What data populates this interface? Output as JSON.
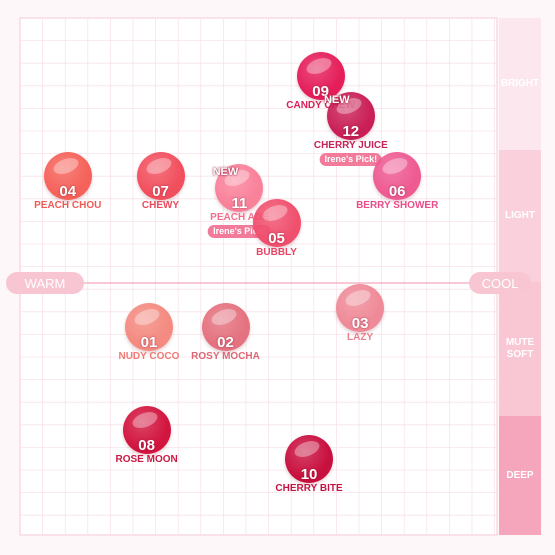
{
  "chart_data": {
    "type": "scatter",
    "x_axis": {
      "left_label": "WARM",
      "right_label": "COOL"
    },
    "y_bands": [
      {
        "id": "bright",
        "label": "BRIGHT",
        "color": "#fde7ee"
      },
      {
        "id": "light",
        "label": "LIGHT",
        "color": "#fbd0dd"
      },
      {
        "id": "mute",
        "label": "MUTE\nSOFT",
        "color": "#f9c6d4"
      },
      {
        "id": "deep",
        "label": "DEEP",
        "color": "#f5a6bd"
      }
    ],
    "points": [
      {
        "num": "04",
        "name": "PEACH CHOU",
        "x": -0.82,
        "y": 0.43,
        "color": "#f5625a",
        "label_color": "#ef5a55",
        "new": false,
        "pick": ""
      },
      {
        "num": "07",
        "name": "CHEWY",
        "x": -0.42,
        "y": 0.43,
        "color": "#f24f5e",
        "label_color": "#ea4a5c",
        "new": false,
        "pick": ""
      },
      {
        "num": "11",
        "name": "PEACH ADE",
        "x": -0.08,
        "y": 0.38,
        "color": "#f9819a",
        "label_color": "#f0708c",
        "new": true,
        "pick": "Irene's Pick!"
      },
      {
        "num": "05",
        "name": "BUBBLY",
        "x": 0.08,
        "y": 0.24,
        "color": "#f0506e",
        "label_color": "#e94566",
        "new": false,
        "pick": ""
      },
      {
        "num": "09",
        "name": "CANDY CHEW",
        "x": 0.27,
        "y": 0.83,
        "color": "#e51e5a",
        "label_color": "#d91e58",
        "new": false,
        "pick": ""
      },
      {
        "num": "12",
        "name": "CHERRY JUICE",
        "x": 0.4,
        "y": 0.67,
        "color": "#c91f56",
        "label_color": "#c42356",
        "new": true,
        "pick": "Irene's Pick!"
      },
      {
        "num": "06",
        "name": "BERRY SHOWER",
        "x": 0.6,
        "y": 0.43,
        "color": "#ee5a92",
        "label_color": "#e84e8a",
        "new": false,
        "pick": ""
      },
      {
        "num": "01",
        "name": "NUDY COCO",
        "x": -0.47,
        "y": -0.18,
        "color": "#f48a80",
        "label_color": "#f07a74",
        "new": false,
        "pick": ""
      },
      {
        "num": "02",
        "name": "ROSY MOCHA",
        "x": -0.14,
        "y": -0.18,
        "color": "#e4727f",
        "label_color": "#de6775",
        "new": false,
        "pick": ""
      },
      {
        "num": "03",
        "name": "LAZY",
        "x": 0.44,
        "y": -0.1,
        "color": "#ef8a98",
        "label_color": "#e9808e",
        "new": false,
        "pick": ""
      },
      {
        "num": "08",
        "name": "ROSE MOON",
        "x": -0.48,
        "y": -0.6,
        "color": "#d2153f",
        "label_color": "#c81a44",
        "new": false,
        "pick": ""
      },
      {
        "num": "10",
        "name": "CHERRY BITE",
        "x": 0.22,
        "y": -0.72,
        "color": "#c8103e",
        "label_color": "#c41542",
        "new": false,
        "pick": ""
      }
    ],
    "new_label": "NEW"
  }
}
